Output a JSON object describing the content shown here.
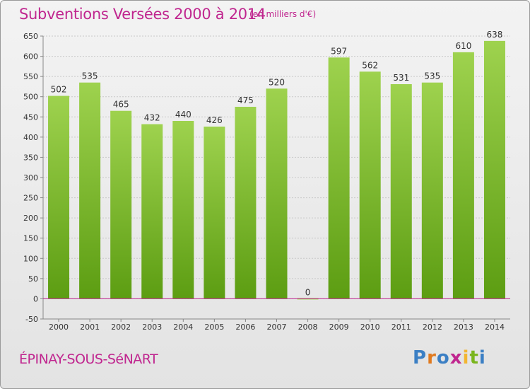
{
  "header": {
    "title": "Subventions Versées 2000 à 2014",
    "subtitle": "(en milliers d'€)"
  },
  "footer": {
    "commune": "ÉPINAY-SOUS-SéNART",
    "brand": "Proxiti",
    "brand_letters": [
      "P",
      "r",
      "o",
      "x",
      "i",
      "t",
      "i"
    ],
    "brand_colors": [
      "#3b7fc4",
      "#e07a1f",
      "#3b7fc4",
      "#c0268f",
      "#f2b632",
      "#7ab51d",
      "#3b7fc4"
    ]
  },
  "colors": {
    "title": "#c0268f",
    "bar_top": "#9ed24e",
    "bar_bottom": "#5c9d12",
    "grid": "#c8c8c8",
    "zero_line": "#c0268f"
  },
  "chart_data": {
    "type": "bar",
    "categories": [
      "2000",
      "2001",
      "2002",
      "2003",
      "2004",
      "2005",
      "2006",
      "2007",
      "2008",
      "2009",
      "2010",
      "2011",
      "2012",
      "2013",
      "2014"
    ],
    "values": [
      502,
      535,
      465,
      432,
      440,
      426,
      475,
      520,
      0,
      597,
      562,
      531,
      535,
      610,
      638
    ],
    "title": "Subventions Versées 2000 à 2014",
    "unit_label": "(en milliers d'€)",
    "xlabel": "",
    "ylabel": "",
    "ylim": [
      -50,
      650
    ],
    "yticks": [
      -50,
      0,
      50,
      100,
      150,
      200,
      250,
      300,
      350,
      400,
      450,
      500,
      550,
      600,
      650
    ],
    "grid": true,
    "data_labels": true
  }
}
